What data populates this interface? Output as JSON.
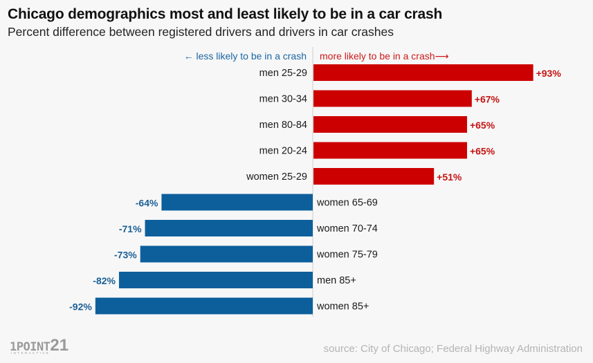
{
  "chart_data": {
    "type": "bar",
    "orientation": "horizontal-diverging",
    "title": "Chicago demographics most and least likely to be in a car crash",
    "subtitle": "Percent difference between registered drivers and drivers in car crashes",
    "direction_labels": {
      "negative": "← less likely to be in a crash",
      "positive": "more likely to be in a crash⟶"
    },
    "categories": [
      "men 25-29",
      "men 30-34",
      "men 80-84",
      "men 20-24",
      "women 25-29",
      "women 65-69",
      "women 70-74",
      "women 75-79",
      "men 85+",
      "women 85+"
    ],
    "values": [
      93,
      67,
      65,
      65,
      51,
      -64,
      -71,
      -73,
      -82,
      -92
    ],
    "value_labels": [
      "+93%",
      "+67%",
      "+65%",
      "+65%",
      "+51%",
      "-64%",
      "-71%",
      "-73%",
      "-82%",
      "-92%"
    ],
    "xlim": [
      -92,
      93
    ],
    "xlabel": "",
    "ylabel": "",
    "grid": false,
    "legend": "none",
    "colors": {
      "positive": "#cc0000",
      "negative": "#0d5f9c",
      "axis": "#cccccc",
      "label": "#1a1a1a"
    }
  },
  "footer": {
    "source": "source: City of Chicago; Federal Highway Administration",
    "logo_main": "1POINT",
    "logo_num": "21",
    "logo_sub": "INTERACTIVE"
  }
}
